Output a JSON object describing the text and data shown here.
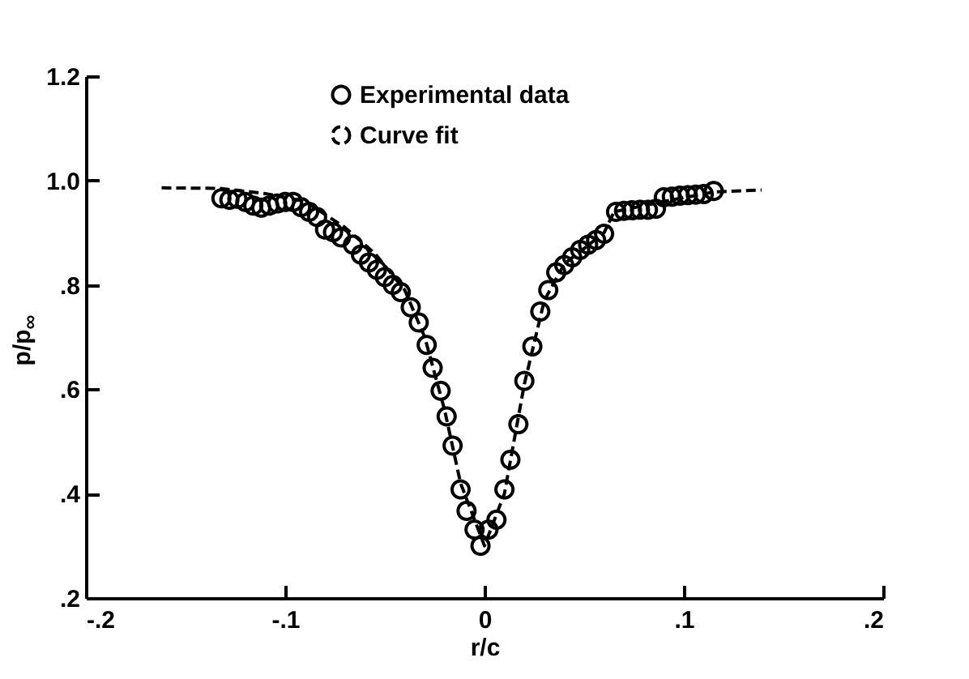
{
  "chart_data": {
    "type": "scatter",
    "xlabel": "r/c",
    "ylabel": "p/p$_{∞}$",
    "xlim": [
      -0.2,
      0.2
    ],
    "ylim": [
      0.2,
      1.2
    ],
    "xticks": [
      {
        "value": -0.2,
        "label": "-.2"
      },
      {
        "value": -0.1,
        "label": "-.1"
      },
      0,
      {
        "value": 0.1,
        "label": ".1"
      },
      {
        "value": 0.2,
        "label": ".2"
      }
    ],
    "yticks": [
      {
        "value": 0.2,
        "label": ".2"
      },
      {
        "value": 0.4,
        "label": ".4"
      },
      {
        "value": 0.6,
        "label": ".6"
      },
      {
        "value": 0.8,
        "label": ".8"
      },
      {
        "value": 1.0,
        "label": "1.0"
      },
      {
        "value": 1.2,
        "label": "1.2"
      }
    ],
    "grid": false,
    "legend": "top",
    "series": [
      {
        "name": "Experimental data",
        "marker": "circle",
        "color": "#000000",
        "x": [
          -0.132,
          -0.128,
          -0.124,
          -0.12,
          -0.116,
          -0.112,
          -0.108,
          -0.104,
          -0.1,
          -0.096,
          -0.092,
          -0.088,
          -0.084,
          -0.08,
          -0.076,
          -0.072,
          -0.066,
          -0.062,
          -0.058,
          -0.054,
          -0.05,
          -0.046,
          -0.042,
          -0.037,
          -0.033,
          -0.029,
          -0.026,
          -0.022,
          -0.019,
          -0.016,
          -0.012,
          -0.009,
          -0.005,
          -0.002,
          0.002,
          0.006,
          0.01,
          0.013,
          0.017,
          0.02,
          0.024,
          0.028,
          0.032,
          0.036,
          0.04,
          0.044,
          0.048,
          0.052,
          0.056,
          0.06,
          0.066,
          0.07,
          0.074,
          0.078,
          0.082,
          0.086,
          0.09,
          0.094,
          0.098,
          0.102,
          0.106,
          0.11,
          0.115
        ],
        "values": [
          0.966,
          0.963,
          0.965,
          0.959,
          0.952,
          0.948,
          0.952,
          0.956,
          0.959,
          0.959,
          0.949,
          0.94,
          0.93,
          0.906,
          0.901,
          0.891,
          0.877,
          0.858,
          0.843,
          0.829,
          0.815,
          0.8,
          0.786,
          0.757,
          0.728,
          0.685,
          0.641,
          0.597,
          0.548,
          0.492,
          0.408,
          0.367,
          0.331,
          0.3,
          0.331,
          0.35,
          0.408,
          0.465,
          0.533,
          0.616,
          0.682,
          0.749,
          0.79,
          0.824,
          0.838,
          0.853,
          0.867,
          0.877,
          0.886,
          0.898,
          0.94,
          0.942,
          0.943,
          0.944,
          0.944,
          0.946,
          0.968,
          0.969,
          0.971,
          0.972,
          0.973,
          0.974,
          0.98
        ]
      },
      {
        "name": "Curve fit",
        "type": "line",
        "line_style": "dashed",
        "color": "#000000",
        "x": [
          -0.162,
          -0.133,
          -0.11,
          -0.09,
          -0.07,
          -0.055,
          -0.04,
          -0.03,
          -0.02,
          -0.012,
          0,
          0.01,
          0.02,
          0.03,
          0.04,
          0.06,
          0.065,
          0.09,
          0.115,
          0.139
        ],
        "values": [
          0.986,
          0.985,
          0.975,
          0.96,
          0.91,
          0.86,
          0.79,
          0.7,
          0.56,
          0.42,
          0.3,
          0.4,
          0.61,
          0.77,
          0.84,
          0.9,
          0.94,
          0.96,
          0.978,
          0.982
        ]
      }
    ]
  }
}
